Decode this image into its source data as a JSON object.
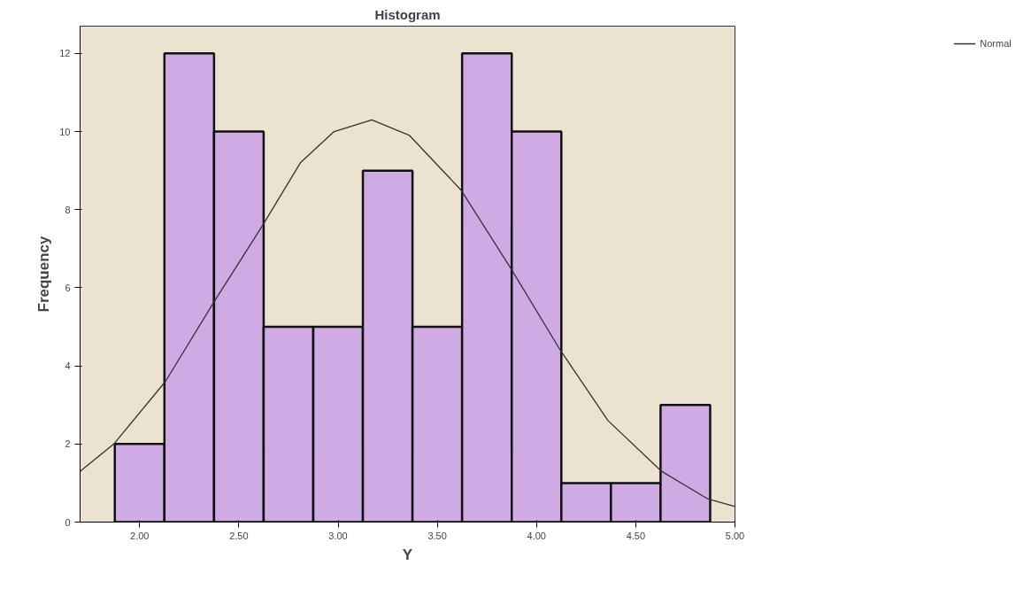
{
  "chart_data": {
    "type": "histogram",
    "title": "Histogram",
    "xlabel": "Y",
    "ylabel": "Frequency",
    "bins": [
      1.875,
      2.125,
      2.375,
      2.625,
      2.875,
      3.125,
      3.375,
      3.625,
      3.875,
      4.125,
      4.375,
      4.625,
      4.875
    ],
    "values": [
      2,
      12,
      10,
      5,
      5,
      9,
      5,
      12,
      10,
      1,
      1,
      3
    ],
    "color": "#cfaae3",
    "series": [
      {
        "type": "line",
        "name": "Normal",
        "color": "#333333",
        "x": [
          1.7,
          1.87,
          2.13,
          2.37,
          2.62,
          2.81,
          2.98,
          3.17,
          3.36,
          3.62,
          3.87,
          4.12,
          4.36,
          4.63,
          4.86,
          5.0
        ],
        "values": [
          1.3,
          2.0,
          3.6,
          5.6,
          7.6,
          9.2,
          10.0,
          10.3,
          9.9,
          8.5,
          6.5,
          4.4,
          2.6,
          1.3,
          0.6,
          0.4
        ]
      }
    ],
    "xlim": [
      1.7,
      5.0
    ],
    "ylim": [
      0,
      12.7
    ],
    "xticks": [
      {
        "value": 2,
        "label": "2.00"
      },
      {
        "value": 2.5,
        "label": "2.50"
      },
      {
        "value": 3,
        "label": "3.00"
      },
      {
        "value": 3.5,
        "label": "3.50"
      },
      {
        "value": 4,
        "label": "4.00"
      },
      {
        "value": 4.5,
        "label": "4.50"
      },
      {
        "value": 5,
        "label": "5.00"
      }
    ],
    "yticks": [
      0,
      2,
      4,
      6,
      8,
      10,
      12
    ],
    "legend": "top right",
    "line_style": "solid"
  }
}
